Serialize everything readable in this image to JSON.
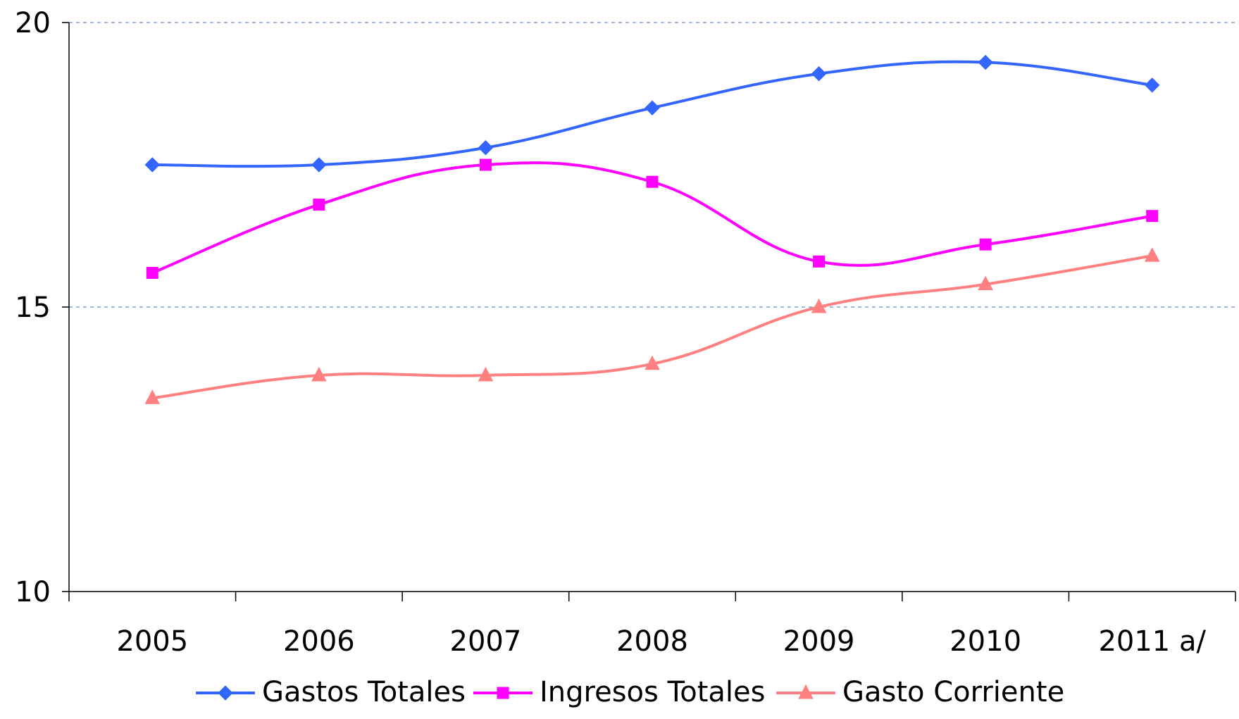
{
  "chart_data": {
    "type": "line",
    "title": "",
    "xlabel": "",
    "ylabel": "",
    "categories": [
      "2005",
      "2006",
      "2007",
      "2008",
      "2009",
      "2010",
      "2011 a/"
    ],
    "yticks": [
      "10",
      "15",
      "20"
    ],
    "ylim": [
      10,
      20
    ],
    "grid": "horizontal dashed",
    "legend_position": "bottom",
    "series": [
      {
        "name": "Gastos Totales",
        "marker": "diamond",
        "color": "#3366ff",
        "values": [
          17.5,
          17.5,
          17.8,
          18.5,
          19.1,
          19.3,
          18.9
        ]
      },
      {
        "name": "Ingresos Totales",
        "marker": "square",
        "color": "#ff00ff",
        "values": [
          15.6,
          16.8,
          17.5,
          17.2,
          15.8,
          16.1,
          16.6
        ]
      },
      {
        "name": "Gasto Corriente",
        "marker": "triangle",
        "color": "#ff8080",
        "values": [
          13.4,
          13.8,
          13.8,
          14.0,
          15.0,
          15.4,
          15.9
        ]
      }
    ]
  }
}
